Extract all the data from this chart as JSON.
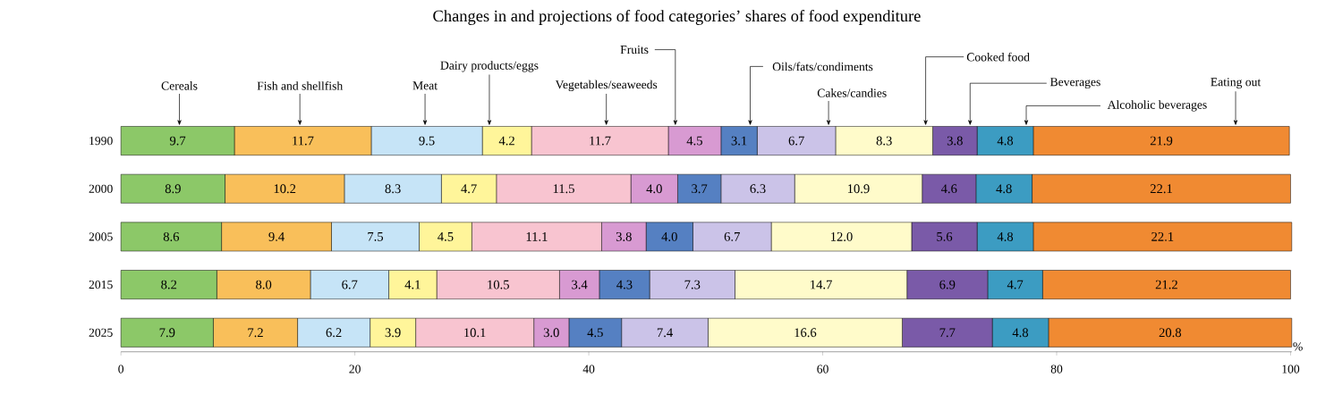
{
  "chart_data": {
    "type": "bar",
    "orientation": "horizontal",
    "stacked": true,
    "legend": false,
    "grid": false,
    "title": "Changes in and projections of food categories’ shares of food expenditure",
    "xlabel": "%",
    "categories": [
      "1990",
      "2000",
      "2005",
      "2015",
      "2025"
    ],
    "xlim": [
      0,
      100.1
    ],
    "xticks": [
      0,
      20,
      40,
      60,
      80,
      100
    ],
    "series": [
      {
        "name": "Cereals",
        "color": "#8cc868",
        "values": [
          9.7,
          8.9,
          8.6,
          8.2,
          7.9
        ],
        "value_labels": [
          "9.7",
          "8.9",
          "8.6",
          "8.2",
          "7.9"
        ]
      },
      {
        "name": "Fish and shellfish",
        "color": "#f9bf5a",
        "values": [
          11.7,
          10.2,
          9.4,
          8.0,
          7.2
        ],
        "value_labels": [
          "11.7",
          "10.2",
          "9.4",
          "8.0",
          "7.2"
        ]
      },
      {
        "name": "Meat",
        "color": "#c6e4f7",
        "values": [
          9.5,
          8.3,
          7.5,
          6.7,
          6.2
        ],
        "value_labels": [
          "9.5",
          "8.3",
          "7.5",
          "6.7",
          "6.2"
        ]
      },
      {
        "name": "Dairy products/eggs",
        "color": "#fff59a",
        "values": [
          4.2,
          4.7,
          4.5,
          4.1,
          3.9
        ],
        "value_labels": [
          "4.2",
          "4.7",
          "4.5",
          "4.1",
          "3.9"
        ]
      },
      {
        "name": "Vegetables/seaweeds",
        "color": "#f8c4d0",
        "values": [
          11.7,
          11.5,
          11.1,
          10.5,
          10.1
        ],
        "value_labels": [
          "11.7",
          "11.5",
          "11.1",
          "10.5",
          "10.1"
        ]
      },
      {
        "name": "Fruits",
        "color": "#d89ad2",
        "values": [
          4.5,
          4.0,
          3.8,
          3.4,
          3.0
        ],
        "value_labels": [
          "4.5",
          "4.0",
          "3.8",
          "3.4",
          "3.0"
        ]
      },
      {
        "name": "Oils/fats/condiments",
        "color": "#5580c2",
        "values": [
          3.1,
          3.7,
          4.0,
          4.3,
          4.5
        ],
        "value_labels": [
          "3.1",
          "3.7",
          "4.0",
          "4.3",
          "4.5"
        ]
      },
      {
        "name": "Cakes/candies",
        "color": "#cbc3e8",
        "values": [
          6.7,
          6.3,
          6.7,
          7.3,
          7.4
        ],
        "value_labels": [
          "6.7",
          "6.3",
          "6.7",
          "7.3",
          "7.4"
        ]
      },
      {
        "name": "Cooked food",
        "color": "#fffbca",
        "values": [
          8.3,
          10.9,
          12.0,
          14.7,
          16.6
        ],
        "value_labels": [
          "8.3",
          "10.9",
          "12.0",
          "14.7",
          "16.6"
        ]
      },
      {
        "name": "Beverages",
        "color": "#7a5aa8",
        "values": [
          3.8,
          4.6,
          5.6,
          6.9,
          7.7
        ],
        "value_labels": [
          "3.8",
          "4.6",
          "5.6",
          "6.9",
          "7.7"
        ]
      },
      {
        "name": "Alcoholic beverages",
        "color": "#3c9cc2",
        "values": [
          4.8,
          4.8,
          4.8,
          4.7,
          4.8
        ],
        "value_labels": [
          "4.8",
          "4.8",
          "4.8",
          "4.7",
          "4.8"
        ]
      },
      {
        "name": "Eating out",
        "color": "#f08a32",
        "values": [
          21.9,
          22.1,
          22.1,
          21.2,
          20.8
        ],
        "value_labels": [
          "21.9",
          "22.1",
          "22.1",
          "21.2",
          "20.8"
        ]
      }
    ]
  }
}
